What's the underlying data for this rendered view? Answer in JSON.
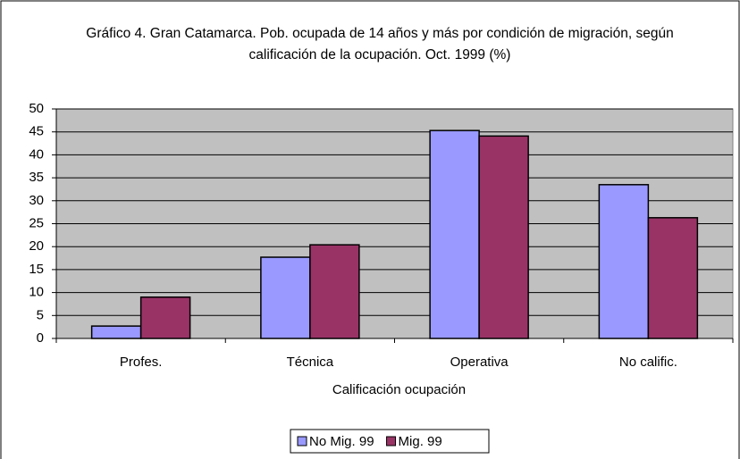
{
  "chart_data": {
    "type": "bar",
    "title": "Gráfico 4. Gran Catamarca. Pob. ocupada de 14 años y más por condición de migración, según  calificación de la ocupación. Oct. 1999 (%)",
    "x_label": "Calificación ocupación",
    "categories": [
      "Profes.",
      "Técnica",
      "Operativa",
      "No calific."
    ],
    "series": [
      {
        "name": "No Mig. 99",
        "color": "#9999ff",
        "values": [
          2.7,
          17.7,
          45.3,
          33.5
        ]
      },
      {
        "name": "Mig. 99",
        "color": "#993366",
        "values": [
          9.0,
          20.4,
          44.1,
          26.3
        ]
      }
    ],
    "ylim": [
      0,
      50
    ],
    "yticks": [
      0,
      5,
      10,
      15,
      20,
      25,
      30,
      35,
      40,
      45,
      50
    ],
    "grid": true,
    "legend": "bottom"
  }
}
